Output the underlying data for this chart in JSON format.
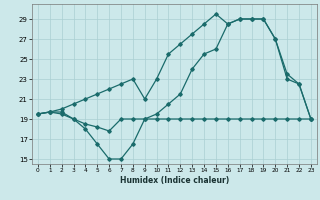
{
  "xlabel": "Humidex (Indice chaleur)",
  "bg_color": "#cce8ea",
  "grid_color": "#aacfd2",
  "line_color": "#1a6b6b",
  "xlim": [
    -0.5,
    23.5
  ],
  "ylim": [
    14.5,
    30.5
  ],
  "yticks": [
    15,
    17,
    19,
    21,
    23,
    25,
    27,
    29
  ],
  "xticks": [
    0,
    1,
    2,
    3,
    4,
    5,
    6,
    7,
    8,
    9,
    10,
    11,
    12,
    13,
    14,
    15,
    16,
    17,
    18,
    19,
    20,
    21,
    22,
    23
  ],
  "line1_x": [
    0,
    1,
    2,
    3,
    4,
    5,
    6,
    7,
    8,
    9,
    10,
    11,
    12,
    13,
    14,
    15,
    16,
    17,
    18,
    19,
    20,
    21,
    22,
    23
  ],
  "line1_y": [
    19.5,
    19.7,
    19.7,
    19.0,
    18.5,
    18.2,
    17.8,
    19.0,
    19.0,
    19.0,
    19.0,
    19.0,
    19.0,
    19.0,
    19.0,
    19.0,
    19.0,
    19.0,
    19.0,
    19.0,
    19.0,
    19.0,
    19.0,
    19.0
  ],
  "line2_x": [
    0,
    1,
    2,
    3,
    4,
    5,
    6,
    7,
    8,
    9,
    10,
    11,
    12,
    13,
    14,
    15,
    16,
    17,
    18,
    19,
    20,
    21,
    22,
    23
  ],
  "line2_y": [
    19.5,
    19.7,
    20.0,
    20.5,
    21.0,
    21.5,
    22.0,
    22.5,
    23.0,
    21.0,
    23.0,
    25.5,
    26.5,
    27.5,
    28.5,
    29.5,
    28.5,
    29.0,
    29.0,
    29.0,
    27.0,
    23.5,
    22.5,
    19.0
  ],
  "line3_x": [
    0,
    1,
    2,
    3,
    4,
    5,
    6,
    7,
    8,
    9,
    10,
    11,
    12,
    13,
    14,
    15,
    16,
    17,
    18,
    19,
    20,
    21,
    22,
    23
  ],
  "line3_y": [
    19.5,
    19.7,
    19.5,
    19.0,
    18.0,
    16.5,
    15.0,
    15.0,
    16.5,
    19.0,
    19.5,
    20.5,
    21.5,
    24.0,
    25.5,
    26.0,
    28.5,
    29.0,
    29.0,
    29.0,
    27.0,
    23.0,
    22.5,
    19.0
  ]
}
